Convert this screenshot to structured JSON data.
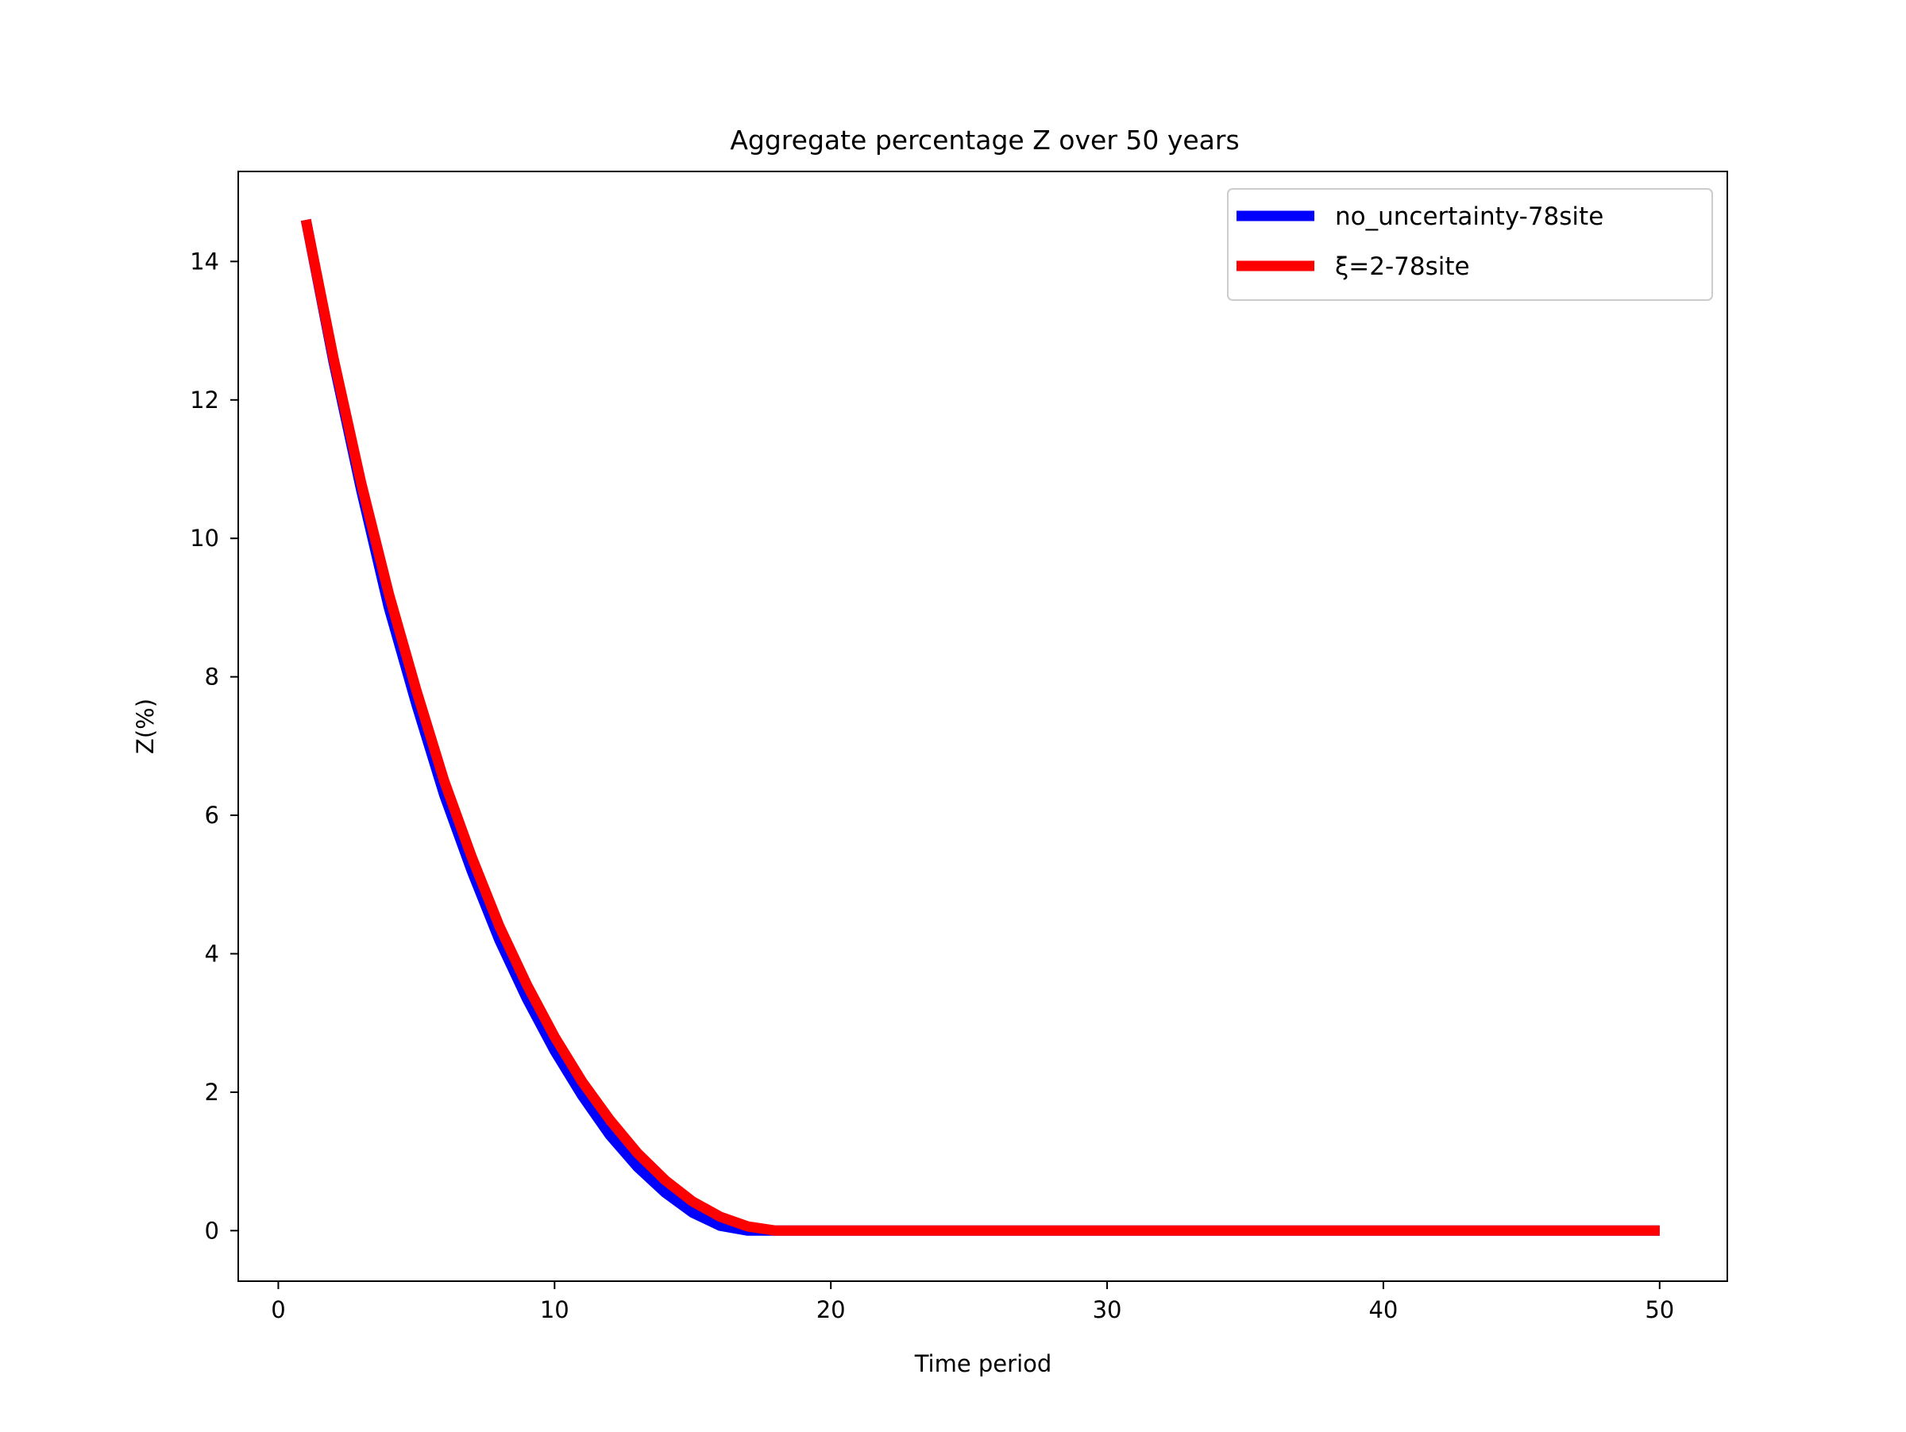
{
  "chart_data": {
    "type": "line",
    "title": "Aggregate percentage Z over 50 years",
    "xlabel": "Time period",
    "ylabel": "Z(%)",
    "xlim": [
      -1.45,
      52.45
    ],
    "ylim": [
      -0.73,
      15.3
    ],
    "xticks": [
      0,
      10,
      20,
      30,
      40,
      50
    ],
    "yticks": [
      0,
      2,
      4,
      6,
      8,
      10,
      12,
      14
    ],
    "grid": false,
    "legend_position": "top-right",
    "series": [
      {
        "name": "no_uncertainty-78site",
        "color": "#0000ff",
        "x": [
          1,
          2,
          3,
          4,
          5,
          6,
          7,
          8,
          9,
          10,
          11,
          12,
          13,
          14,
          15,
          16,
          17,
          18,
          19,
          20,
          21,
          22,
          23,
          24,
          25,
          26,
          27,
          28,
          29,
          30,
          31,
          32,
          33,
          34,
          35,
          36,
          37,
          38,
          39,
          40,
          41,
          42,
          43,
          44,
          45,
          46,
          47,
          48,
          49,
          50
        ],
        "y": [
          14.6,
          12.55,
          10.7,
          9.0,
          7.6,
          6.3,
          5.2,
          4.2,
          3.35,
          2.6,
          1.95,
          1.38,
          0.92,
          0.55,
          0.26,
          0.07,
          0.0,
          0.0,
          0.0,
          0.0,
          0.0,
          0.0,
          0.0,
          0.0,
          0.0,
          0.0,
          0.0,
          0.0,
          0.0,
          0.0,
          0.0,
          0.0,
          0.0,
          0.0,
          0.0,
          0.0,
          0.0,
          0.0,
          0.0,
          0.0,
          0.0,
          0.0,
          0.0,
          0.0,
          0.0,
          0.0,
          0.0,
          0.0,
          0.0,
          0.0
        ]
      },
      {
        "name": "ξ=2-78site",
        "color": "#ff0000",
        "x": [
          1,
          2,
          3,
          4,
          5,
          6,
          7,
          8,
          9,
          10,
          11,
          12,
          13,
          14,
          15,
          16,
          17,
          18,
          19,
          20,
          21,
          22,
          23,
          24,
          25,
          26,
          27,
          28,
          29,
          30,
          31,
          32,
          33,
          34,
          35,
          36,
          37,
          38,
          39,
          40,
          41,
          42,
          43,
          44,
          45,
          46,
          47,
          48,
          49,
          50
        ],
        "y": [
          14.6,
          12.6,
          10.8,
          9.2,
          7.8,
          6.5,
          5.4,
          4.4,
          3.55,
          2.8,
          2.15,
          1.6,
          1.12,
          0.73,
          0.42,
          0.2,
          0.06,
          0.0,
          0.0,
          0.0,
          0.0,
          0.0,
          0.0,
          0.0,
          0.0,
          0.0,
          0.0,
          0.0,
          0.0,
          0.0,
          0.0,
          0.0,
          0.0,
          0.0,
          0.0,
          0.0,
          0.0,
          0.0,
          0.0,
          0.0,
          0.0,
          0.0,
          0.0,
          0.0,
          0.0,
          0.0,
          0.0,
          0.0,
          0.0,
          0.0
        ]
      }
    ]
  }
}
